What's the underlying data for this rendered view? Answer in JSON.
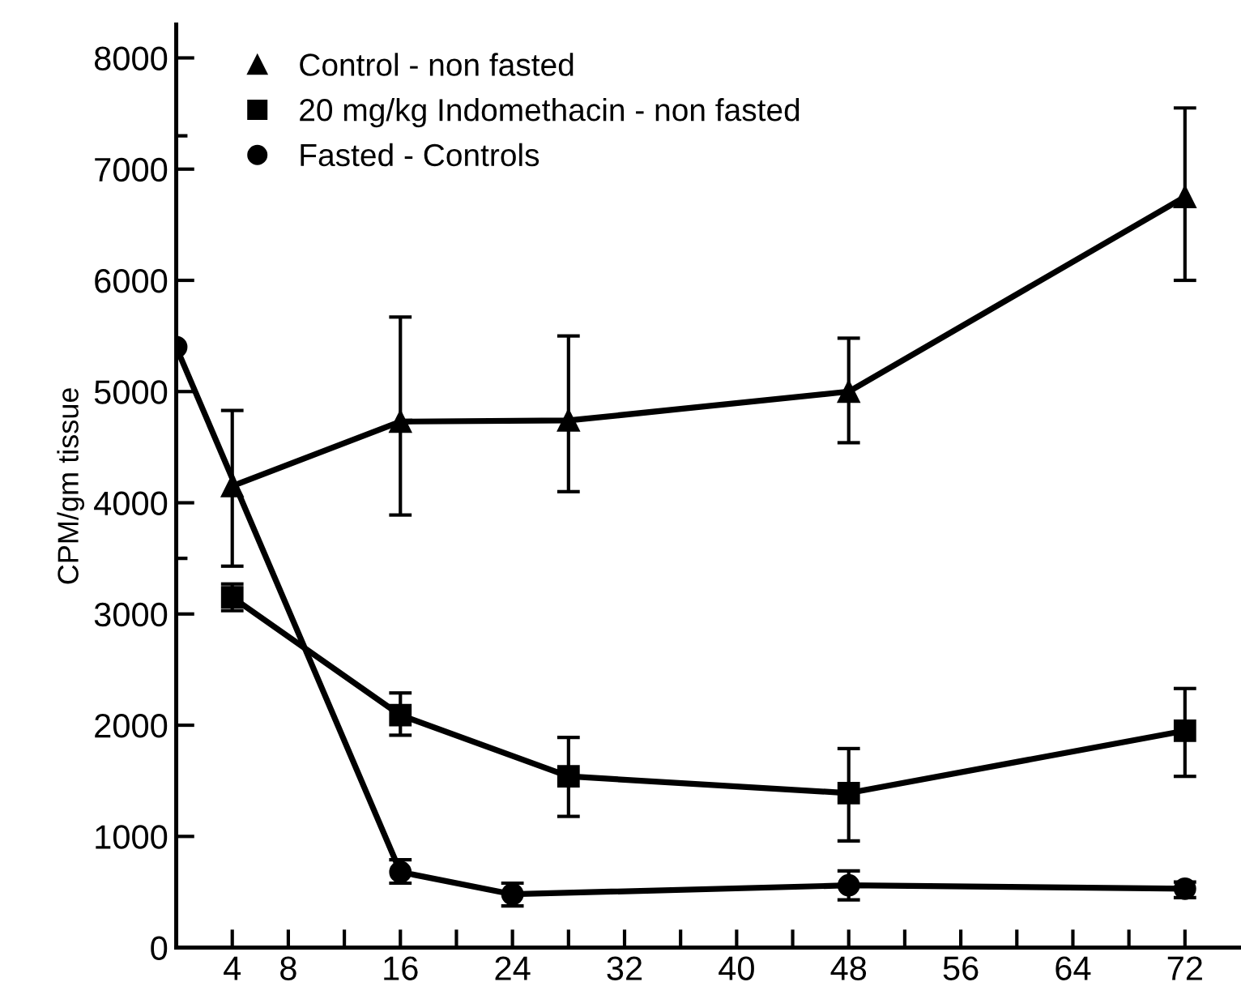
{
  "chart_data": {
    "type": "line",
    "ylabel": "CPM/gm tissue",
    "series": [
      {
        "name": "Control - non fasted",
        "color": "#000000",
        "marker": "triangle",
        "x": [
          4,
          16,
          28,
          48,
          72
        ],
        "values": [
          4150,
          4730,
          4740,
          5000,
          6750
        ],
        "errors": [
          [
            3430,
            4830
          ],
          [
            3890,
            5670
          ],
          [
            4100,
            5500
          ],
          [
            4540,
            5480
          ],
          [
            6000,
            7550
          ]
        ]
      },
      {
        "name": "20 mg/kg Indomethacin - non fasted",
        "color": "#000000",
        "marker": "square",
        "x": [
          4,
          16,
          28,
          48,
          72
        ],
        "values": [
          3150,
          2090,
          1540,
          1390,
          1950
        ],
        "errors": [
          [
            3030,
            3270
          ],
          [
            1910,
            2290
          ],
          [
            1180,
            1890
          ],
          [
            960,
            1790
          ],
          [
            1540,
            2330
          ]
        ]
      },
      {
        "name": "Fasted - Controls",
        "color": "#000000",
        "marker": "circle",
        "x": [
          0,
          16,
          24,
          48,
          72
        ],
        "values": [
          5400,
          680,
          480,
          560,
          530
        ],
        "errors": [
          [
            3500,
            7300
          ],
          [
            580,
            790
          ],
          [
            375,
            580
          ],
          [
            430,
            690
          ],
          [
            450,
            590
          ]
        ]
      }
    ],
    "xlim": [
      0,
      76
    ],
    "ylim": [
      0,
      8300
    ],
    "xticks": [
      4,
      8,
      {
        "value": 12,
        "label": null
      },
      16,
      {
        "value": 20,
        "label": null
      },
      24,
      {
        "value": 28,
        "label": null
      },
      32,
      {
        "value": 36,
        "label": null
      },
      40,
      {
        "value": 44,
        "label": null
      },
      48,
      {
        "value": 52,
        "label": null
      },
      56,
      {
        "value": 60,
        "label": null
      },
      64,
      {
        "value": 68,
        "label": null
      },
      72
    ],
    "yticks": [
      0,
      1000,
      2000,
      3000,
      4000,
      5000,
      6000,
      7000,
      8000
    ],
    "legend": "top left",
    "grid": false,
    "line_style": "solid"
  }
}
